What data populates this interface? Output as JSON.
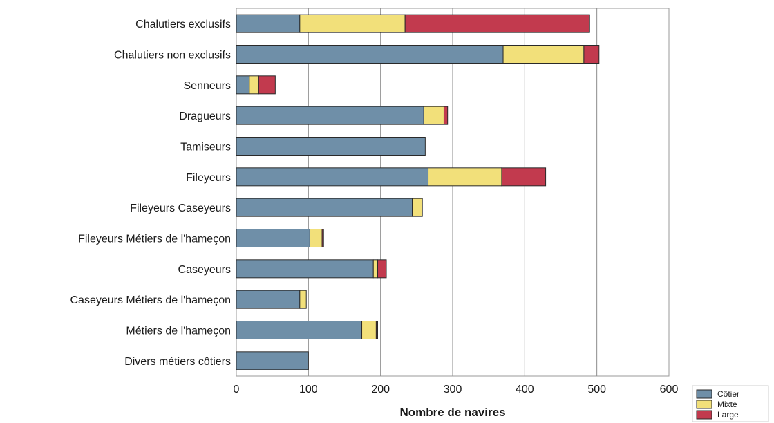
{
  "chart_data": {
    "type": "bar",
    "orientation": "horizontal",
    "stacked": true,
    "title": "",
    "xlabel": "Nombre de navires",
    "ylabel": "",
    "xlim": [
      0,
      600
    ],
    "xticks": [
      0,
      100,
      200,
      300,
      400,
      500,
      600
    ],
    "grid": true,
    "legend_position": "bottom-right",
    "categories": [
      "Chalutiers exclusifs",
      "Chalutiers non exclusifs",
      "Senneurs",
      "Dragueurs",
      "Tamiseurs",
      "Fileyeurs",
      "Fileyeurs Caseyeurs",
      "Fileyeurs Métiers de l'hameçon",
      "Caseyeurs",
      "Caseyeurs Métiers de l'hameçon",
      "Métiers de l'hameçon",
      "Divers métiers côtiers"
    ],
    "series": [
      {
        "name": "Côtier",
        "color": "#6f8fa8",
        "values": [
          88,
          370,
          18,
          260,
          262,
          266,
          244,
          102,
          190,
          88,
          174,
          100
        ]
      },
      {
        "name": "Mixte",
        "color": "#f2e07a",
        "values": [
          146,
          112,
          13,
          28,
          0,
          102,
          14,
          17,
          6,
          9,
          20,
          0
        ]
      },
      {
        "name": "Large",
        "color": "#c23a4e",
        "values": [
          256,
          21,
          23,
          5,
          0,
          61,
          0,
          2,
          12,
          0,
          2,
          0
        ]
      }
    ]
  }
}
